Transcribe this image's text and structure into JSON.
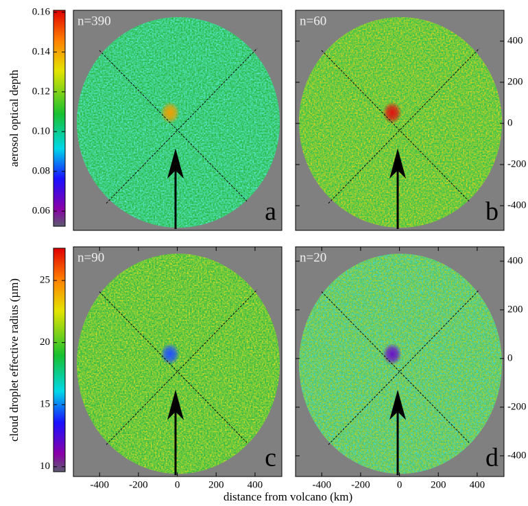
{
  "xlabel": "distance from volcano (km)",
  "chart_data": [
    {
      "type": "heatmap",
      "annotation": "n=390",
      "panel_label": "a",
      "xlim": [
        -535,
        538
      ],
      "ylim": [
        -520,
        550
      ],
      "colorbar": {
        "label": "aerosol optical depth",
        "lim": [
          0.0524,
          0.161
        ],
        "ticks": [
          0.16,
          0.14,
          0.12,
          {
            "value": 0.1,
            "label": "0.10"
          },
          0.08,
          0.06
        ]
      }
    },
    {
      "type": "heatmap",
      "annotation": "n=60",
      "panel_label": "b",
      "xlim": [
        -535,
        538
      ],
      "ylim": [
        -520,
        550
      ],
      "yticks": [
        400,
        200,
        0,
        -200,
        -400
      ]
    },
    {
      "type": "heatmap",
      "annotation": "n=90",
      "panel_label": "c",
      "xlim": [
        -535,
        538
      ],
      "ylim": [
        -485,
        459
      ],
      "xticks": [
        -400,
        -200,
        0,
        200,
        400
      ],
      "colorbar": {
        "label": "cloud droplet effective radius (µm)",
        "lim": [
          9.6,
          27.6
        ],
        "ticks": [
          25,
          20,
          15,
          10
        ]
      }
    },
    {
      "type": "heatmap",
      "annotation": "n=20",
      "panel_label": "d",
      "xlim": [
        -535,
        538
      ],
      "ylim": [
        -485,
        459
      ],
      "xticks": [
        -400,
        -200,
        0,
        200,
        400
      ],
      "yticks": [
        400,
        200,
        0,
        -200,
        -400
      ]
    }
  ]
}
